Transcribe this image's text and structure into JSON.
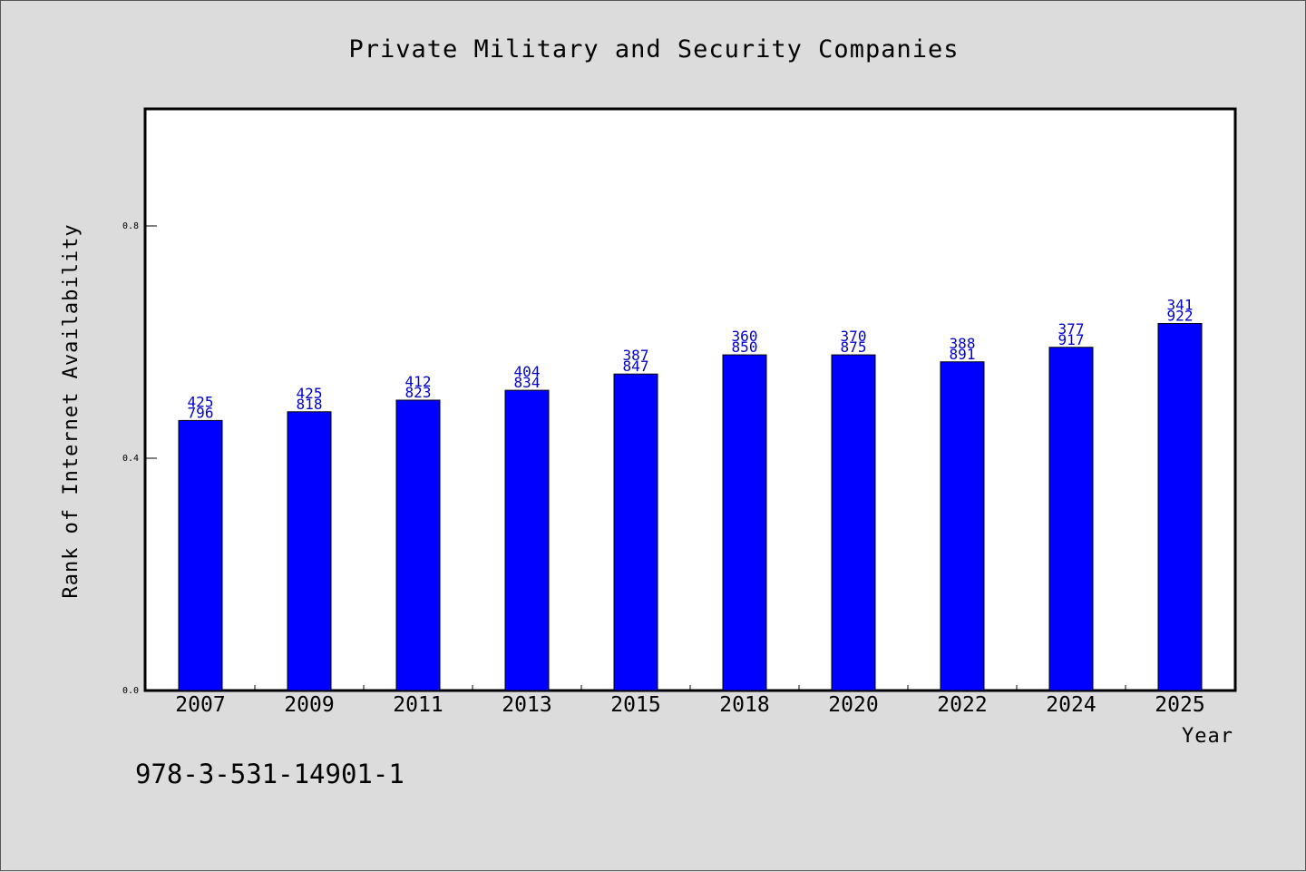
{
  "chart_data": {
    "type": "bar",
    "title": "Private Military and Security Companies",
    "xlabel": "Year",
    "ylabel": "Rank of Internet Availability",
    "categories": [
      "2007",
      "2009",
      "2011",
      "2013",
      "2015",
      "2018",
      "2020",
      "2022",
      "2024",
      "2025"
    ],
    "values": [
      0.465,
      0.48,
      0.5,
      0.517,
      0.545,
      0.578,
      0.578,
      0.566,
      0.591,
      0.632
    ],
    "data_labels": [
      [
        "425",
        "796"
      ],
      [
        "425",
        "818"
      ],
      [
        "412",
        "823"
      ],
      [
        "404",
        "834"
      ],
      [
        "387",
        "847"
      ],
      [
        "360",
        "850"
      ],
      [
        "370",
        "875"
      ],
      [
        "388",
        "891"
      ],
      [
        "377",
        "917"
      ],
      [
        "341",
        "922"
      ]
    ],
    "ylim": [
      0,
      1.0
    ],
    "yticks": [
      0.0,
      0.4,
      0.8
    ],
    "ytick_labels": [
      "0.0",
      "0.4",
      "0.8"
    ],
    "grid": false,
    "bar_color": "#0000ff",
    "label_color": "#0000cc"
  },
  "footer_text": "978-3-531-14901-1"
}
